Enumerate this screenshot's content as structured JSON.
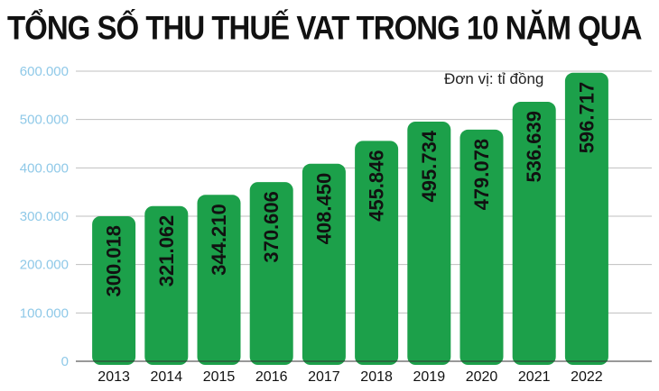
{
  "chart_data": {
    "type": "bar",
    "title": "TỔNG SỐ THU THUẾ VAT TRONG 10 NĂM QUA",
    "unit_note": "Đơn vị: tỉ đồng",
    "categories": [
      "2013",
      "2014",
      "2015",
      "2016",
      "2017",
      "2018",
      "2019",
      "2020",
      "2021",
      "2022"
    ],
    "values": [
      300018,
      321062,
      344210,
      370606,
      408450,
      455846,
      495734,
      479078,
      536639,
      596717
    ],
    "value_labels": [
      "300.018",
      "321.062",
      "344.210",
      "370.606",
      "408.450",
      "455.846",
      "495.734",
      "479.078",
      "536.639",
      "596.717"
    ],
    "ylim": [
      0,
      600000
    ],
    "yticks": [
      0,
      100000,
      200000,
      300000,
      400000,
      500000,
      600000
    ],
    "ytick_labels": [
      "0",
      "100.000",
      "200.000",
      "300.000",
      "400.000",
      "500.000",
      "600.000"
    ],
    "grid": true,
    "colors": {
      "bar": "#1ca04a",
      "grid": "#bfbfbf",
      "ytick": "#8fc9e8"
    }
  }
}
